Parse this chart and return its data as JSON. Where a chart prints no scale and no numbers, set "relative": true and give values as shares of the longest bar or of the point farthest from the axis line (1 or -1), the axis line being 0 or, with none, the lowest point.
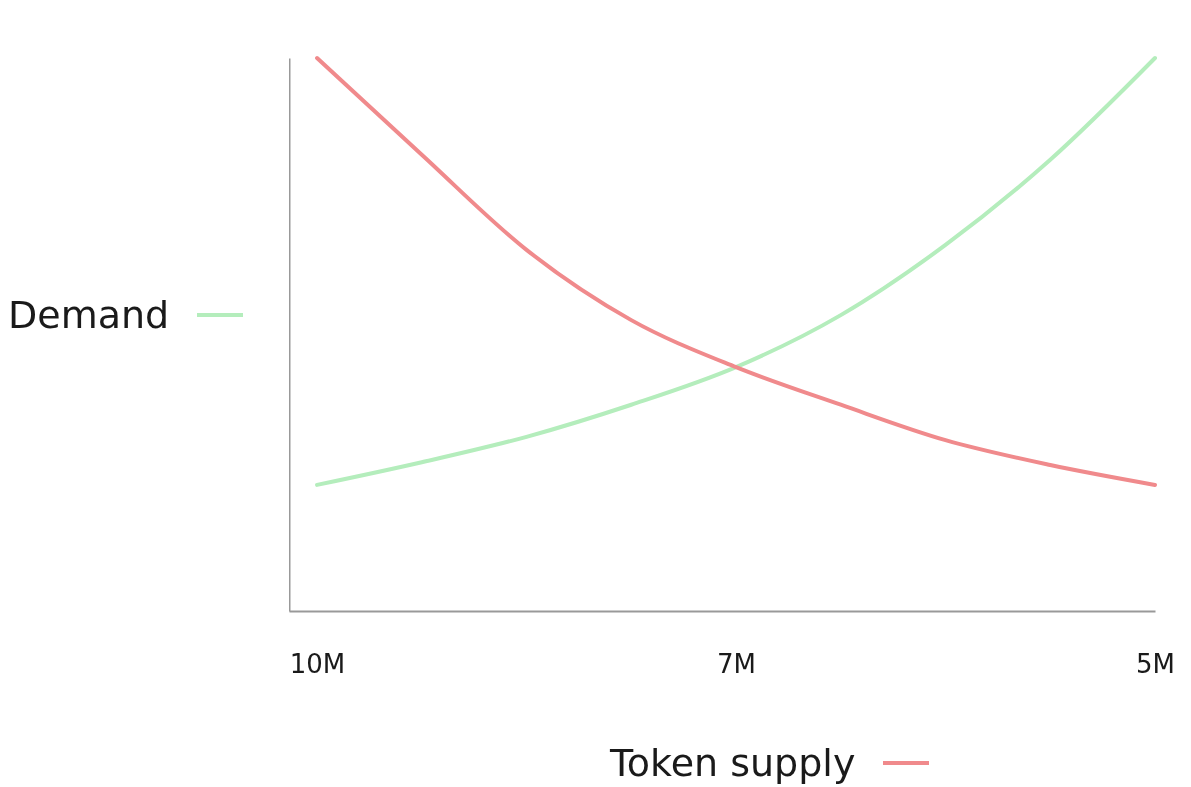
{
  "chart_data": {
    "type": "line",
    "relative": true,
    "categories": [
      "10M",
      null,
      null,
      null,
      "7M",
      null,
      null,
      null,
      "5M"
    ],
    "series": [
      {
        "name": "Demand",
        "color": "#b4edbc",
        "values": [
          0.228,
          0.269,
          0.315,
          0.373,
          0.441,
          0.535,
          0.662,
          0.816,
          1.0
        ]
      },
      {
        "name": "Token supply",
        "color": "#f08a8c",
        "values": [
          1.0,
          0.825,
          0.653,
          0.526,
          0.441,
          0.373,
          0.309,
          0.264,
          0.228
        ]
      }
    ],
    "grid": false,
    "marker": "none",
    "line_style": "solid",
    "legend": "left"
  }
}
